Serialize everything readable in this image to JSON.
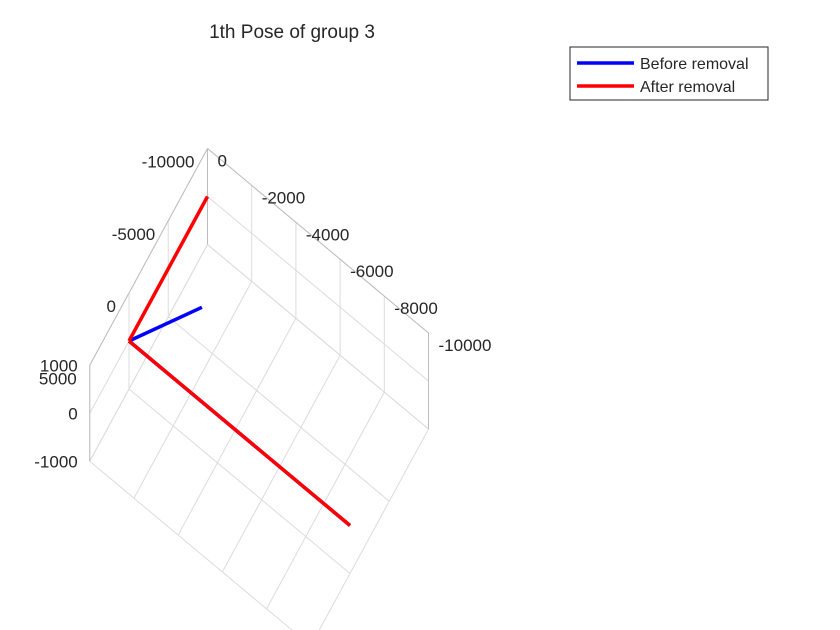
{
  "chart_data": {
    "type": "line",
    "title": "1th Pose of group 3",
    "view": "3d",
    "grid": true,
    "legend_position": "top-right",
    "x_axis": {
      "range": [
        -10000,
        0
      ],
      "ticks": [
        "-10000",
        "-8000",
        "-6000",
        "-4000",
        "-2000",
        "0"
      ]
    },
    "y_axis": {
      "range": [
        -10000,
        5000
      ],
      "ticks": [
        "5000",
        "0",
        "-5000",
        "-10000"
      ]
    },
    "z_axis": {
      "range": [
        -1000,
        1000
      ],
      "ticks": [
        "1000",
        "0",
        "-1000"
      ]
    },
    "series": [
      {
        "name": "Before removal",
        "color": "#0000ff",
        "segments": [
          [
            [
              0,
              0,
              0
            ],
            [
              -10000,
              0,
              0
            ]
          ],
          [
            [
              0,
              0,
              0
            ],
            [
              -1700,
              -4500,
              0
            ]
          ]
        ]
      },
      {
        "name": "After removal",
        "color": "#ff0000",
        "segments": [
          [
            [
              0,
              0,
              0
            ],
            [
              -10000,
              0,
              0
            ]
          ],
          [
            [
              0,
              0,
              0
            ],
            [
              0,
              -10000,
              0
            ]
          ]
        ]
      }
    ]
  }
}
